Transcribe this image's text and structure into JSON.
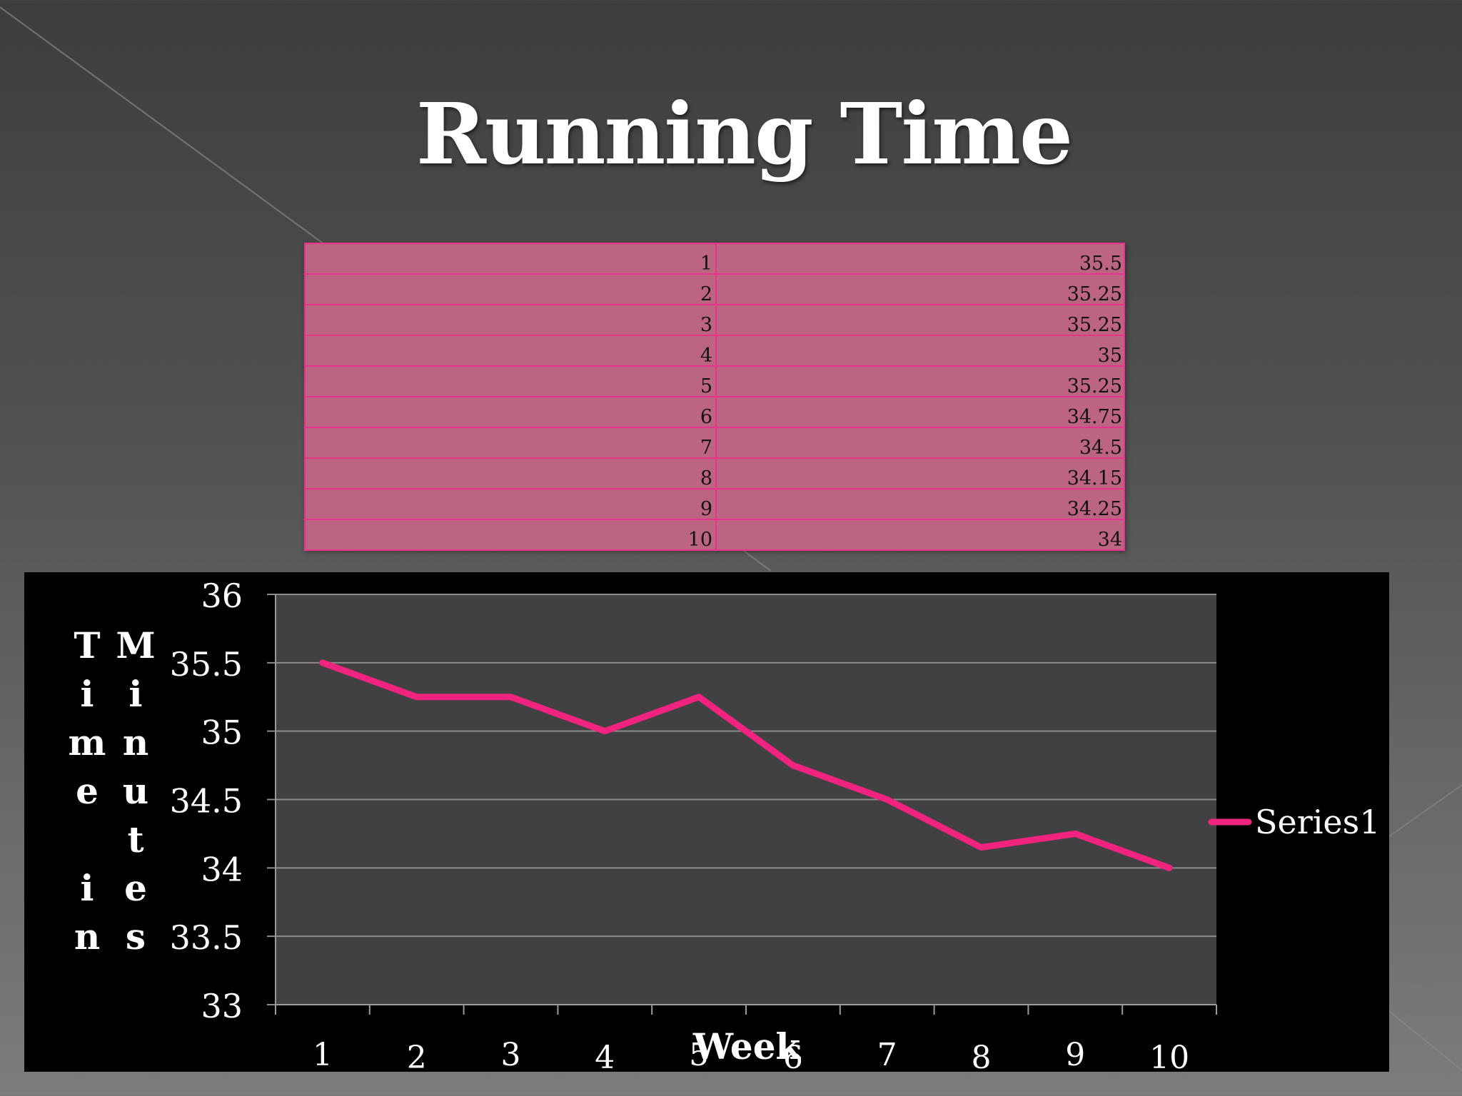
{
  "slide": {
    "title": "Running Time"
  },
  "table": {
    "rows": [
      [
        "1",
        "35.5"
      ],
      [
        "2",
        "35.25"
      ],
      [
        "3",
        "35.25"
      ],
      [
        "4",
        "35"
      ],
      [
        "5",
        "35.25"
      ],
      [
        "6",
        "34.75"
      ],
      [
        "7",
        "34.5"
      ],
      [
        "8",
        "34.15"
      ],
      [
        "9",
        "34.25"
      ],
      [
        "10",
        "34"
      ]
    ]
  },
  "chart_data": {
    "type": "line",
    "x": [
      1,
      2,
      3,
      4,
      5,
      6,
      7,
      8,
      9,
      10
    ],
    "series": [
      {
        "name": "Series1",
        "values": [
          35.5,
          35.25,
          35.25,
          35,
          35.25,
          34.75,
          34.5,
          34.15,
          34.25,
          34
        ],
        "color": "#f0237f"
      }
    ],
    "xlabel": "Week",
    "ylabel_columns": [
      "Time in",
      "Minutes"
    ],
    "ylim": [
      33,
      36
    ],
    "yticks": [
      "36",
      "35.5",
      "35",
      "34.5",
      "34",
      "33.5",
      "33"
    ],
    "xticks": [
      "1",
      "2",
      "3",
      "4",
      "5",
      "6",
      "7",
      "8",
      "9",
      "10"
    ],
    "grid": true,
    "legend": "right"
  }
}
